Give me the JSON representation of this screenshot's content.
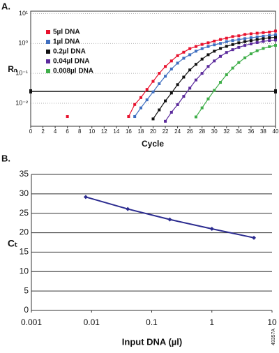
{
  "chart_data": [
    {
      "type": "line",
      "panel_label": "A.",
      "xlabel": "Cycle",
      "ylabel": "Rₙ",
      "log_y": true,
      "grid": true,
      "xlim": [
        0,
        40
      ],
      "xticks": [
        0,
        2,
        4,
        6,
        8,
        10,
        12,
        14,
        16,
        18,
        20,
        22,
        24,
        26,
        28,
        30,
        32,
        34,
        36,
        38,
        40
      ],
      "ylim": [
        0.0017,
        12
      ],
      "yticks": [
        {
          "value": 10,
          "label": "10¹"
        },
        {
          "value": 1,
          "label": "10⁰"
        },
        {
          "value": 0.1,
          "label": "10⁻¹"
        },
        {
          "value": 0.01,
          "label": "10⁻²"
        }
      ],
      "threshold": 0.025,
      "legend": "upper-left",
      "series": [
        {
          "name": "5µl DNA",
          "color": "#e8112d",
          "x": [
            6,
            null,
            16,
            17,
            18,
            19,
            20,
            21,
            22,
            23,
            24,
            25,
            26,
            27,
            28,
            29,
            30,
            31,
            32,
            33,
            34,
            35,
            36,
            37,
            38,
            39,
            40
          ],
          "values": [
            0.0036,
            null,
            0.0036,
            0.0091,
            0.0155,
            0.029,
            0.054,
            0.1,
            0.17,
            0.26,
            0.39,
            0.51,
            0.67,
            0.79,
            0.93,
            1.05,
            1.2,
            1.35,
            1.5,
            1.7,
            1.8,
            2.0,
            2.1,
            2.2,
            2.3,
            2.4,
            2.6
          ]
        },
        {
          "name": "1µl DNA",
          "color": "#3f6fc0",
          "x": [
            17,
            18,
            19,
            20,
            21,
            22,
            23,
            24,
            25,
            26,
            27,
            28,
            29,
            30,
            31,
            32,
            33,
            34,
            35,
            36,
            37,
            38,
            39,
            40
          ],
          "values": [
            0.0036,
            0.007,
            0.013,
            0.024,
            0.045,
            0.08,
            0.14,
            0.22,
            0.32,
            0.42,
            0.55,
            0.67,
            0.79,
            0.9,
            1.0,
            1.15,
            1.25,
            1.35,
            1.45,
            1.55,
            1.65,
            1.75,
            1.85,
            1.95
          ]
        },
        {
          "name": "0.2µl DNA",
          "color": "#111111",
          "x": [
            20,
            21,
            22,
            23,
            24,
            25,
            26,
            27,
            28,
            29,
            30,
            31,
            32,
            33,
            34,
            35,
            36,
            37,
            38,
            39,
            40
          ],
          "values": [
            0.003,
            0.006,
            0.012,
            0.022,
            0.042,
            0.075,
            0.13,
            0.2,
            0.3,
            0.42,
            0.55,
            0.68,
            0.8,
            0.92,
            1.05,
            1.15,
            1.25,
            1.35,
            1.45,
            1.55,
            1.6
          ]
        },
        {
          "name": "0.04µl DNA",
          "color": "#5b2a9c",
          "x": [
            22,
            23,
            24,
            25,
            26,
            27,
            28,
            29,
            30,
            31,
            32,
            33,
            34,
            35,
            36,
            37,
            38,
            39,
            40
          ],
          "values": [
            0.0025,
            0.005,
            0.009,
            0.017,
            0.032,
            0.06,
            0.1,
            0.17,
            0.26,
            0.37,
            0.5,
            0.62,
            0.74,
            0.86,
            0.97,
            1.07,
            1.17,
            1.25,
            1.3
          ]
        },
        {
          "name": "0.008µl DNA",
          "color": "#3fae49",
          "x": [
            27,
            28,
            29,
            30,
            31,
            32,
            33,
            34,
            35,
            36,
            37,
            38,
            39,
            40
          ],
          "values": [
            0.0035,
            0.007,
            0.014,
            0.027,
            0.05,
            0.09,
            0.15,
            0.23,
            0.33,
            0.45,
            0.57,
            0.68,
            0.78,
            0.86
          ]
        }
      ]
    },
    {
      "type": "line",
      "panel_label": "B.",
      "xlabel": "Input DNA (µl)",
      "ylabel": "Cₜ",
      "log_x": true,
      "grid": true,
      "xlim": [
        0.001,
        10
      ],
      "xticks": [
        0.001,
        0.01,
        0.1,
        1,
        10
      ],
      "ylim": [
        0,
        35
      ],
      "yticks": [
        0,
        5,
        10,
        15,
        20,
        25,
        30,
        35
      ],
      "series": [
        {
          "color": "#2b2b8f",
          "x": [
            0.008,
            0.04,
            0.2,
            1,
            5
          ],
          "values": [
            29.2,
            26.1,
            23.4,
            21.0,
            18.7
          ]
        }
      ]
    }
  ],
  "figure_id": "49357A"
}
